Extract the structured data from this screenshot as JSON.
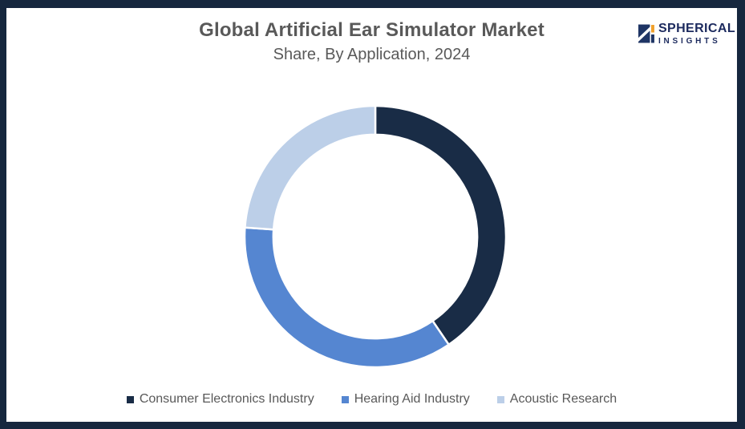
{
  "frame": {
    "border_color": "#16273e",
    "background": "#ffffff"
  },
  "header": {
    "title": "Global Artificial Ear Simulator Market",
    "subtitle": "Share, By Application, 2024",
    "text_color": "#595959"
  },
  "logo": {
    "line1": "SPHERICAL",
    "line2": "INSIGHTS",
    "navy": "#1c2a5e",
    "mark_navy": "#1f3565",
    "mark_orange": "#f0a02c"
  },
  "chart_data": {
    "type": "pie",
    "donut": true,
    "title": "Global Artificial Ear Simulator Market Share, By Application, 2024",
    "categories": [
      "Consumer Electronics Industry",
      "Hearing Aid Industry",
      "Acoustic Research"
    ],
    "values": [
      40.5,
      35.6,
      23.9
    ],
    "colors": [
      "#192c46",
      "#5586d1",
      "#bccfe8"
    ],
    "start_angle_deg": 0,
    "clockwise": true,
    "inner_radius_ratio": 0.78,
    "slice_gap_color": "#ffffff",
    "data_labels": "none",
    "legend_position": "bottom"
  },
  "legend": {
    "text_color": "#595959",
    "items": [
      {
        "label": "Consumer Electronics Industry",
        "color": "#192c46"
      },
      {
        "label": "Hearing Aid Industry",
        "color": "#5586d1"
      },
      {
        "label": "Acoustic Research",
        "color": "#bccfe8"
      }
    ]
  }
}
